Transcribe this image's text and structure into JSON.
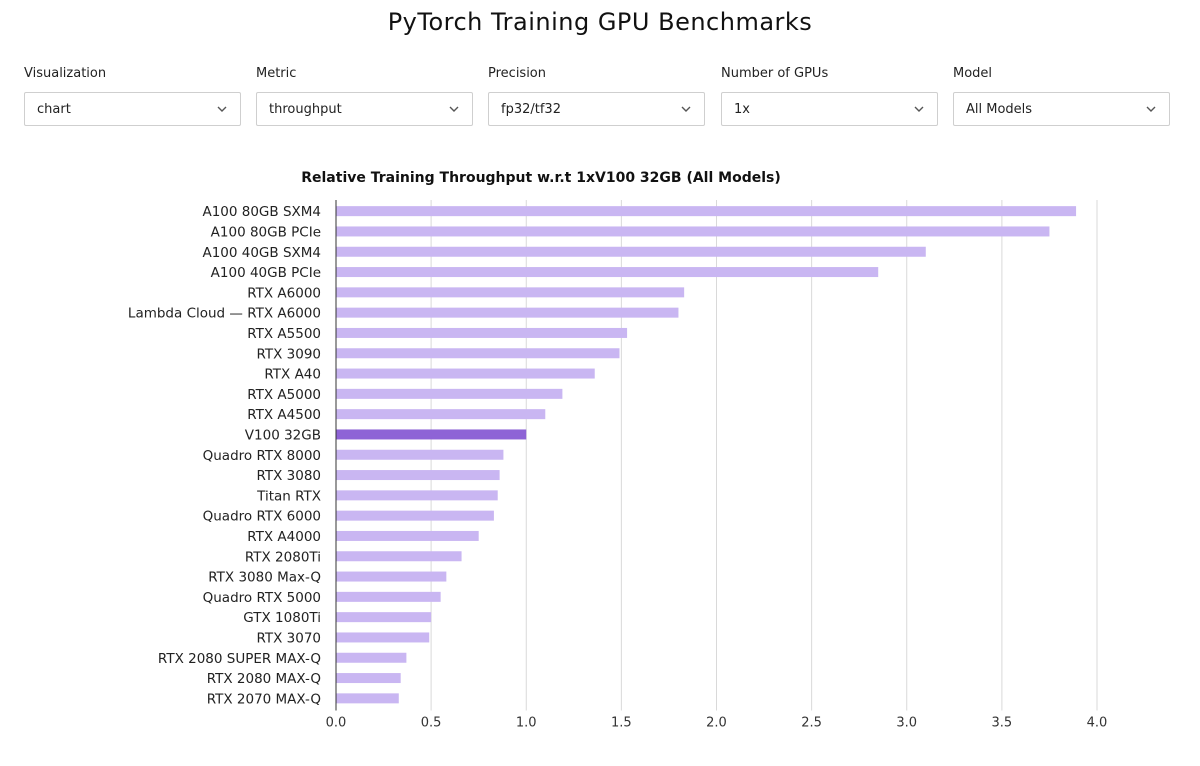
{
  "page": {
    "title": "PyTorch Training GPU Benchmarks"
  },
  "filters": [
    {
      "label": "Visualization",
      "value": "chart"
    },
    {
      "label": "Metric",
      "value": "throughput"
    },
    {
      "label": "Precision",
      "value": "fp32/tf32"
    },
    {
      "label": "Number of GPUs",
      "value": "1x"
    },
    {
      "label": "Model",
      "value": "All Models"
    }
  ],
  "colors": {
    "bar": "#c9b6f2",
    "highlight": "#8e63d6"
  },
  "chart_data": {
    "type": "bar",
    "orientation": "horizontal",
    "title": "Relative Training Throughput w.r.t 1xV100 32GB (All Models)",
    "xlabel": "",
    "ylabel": "",
    "xlim": [
      0,
      4.0
    ],
    "xticks": [
      "0.0",
      "0.5",
      "1.0",
      "1.5",
      "2.0",
      "2.5",
      "3.0",
      "3.5",
      "4.0"
    ],
    "grid": "vertical",
    "highlight_category": "V100 32GB",
    "categories": [
      "A100 80GB SXM4",
      "A100 80GB PCIe",
      "A100 40GB SXM4",
      "A100 40GB PCIe",
      "RTX A6000",
      "Lambda Cloud — RTX A6000",
      "RTX A5500",
      "RTX 3090",
      "RTX A40",
      "RTX A5000",
      "RTX A4500",
      "V100 32GB",
      "Quadro RTX 8000",
      "RTX 3080",
      "Titan RTX",
      "Quadro RTX 6000",
      "RTX A4000",
      "RTX 2080Ti",
      "RTX 3080 Max-Q",
      "Quadro RTX 5000",
      "GTX 1080Ti",
      "RTX 3070",
      "RTX 2080 SUPER MAX-Q",
      "RTX 2080 MAX-Q",
      "RTX 2070 MAX-Q"
    ],
    "values": [
      3.89,
      3.75,
      3.1,
      2.85,
      1.83,
      1.8,
      1.53,
      1.49,
      1.36,
      1.19,
      1.1,
      1.0,
      0.88,
      0.86,
      0.85,
      0.83,
      0.75,
      0.66,
      0.58,
      0.55,
      0.5,
      0.49,
      0.37,
      0.34,
      0.33
    ]
  }
}
